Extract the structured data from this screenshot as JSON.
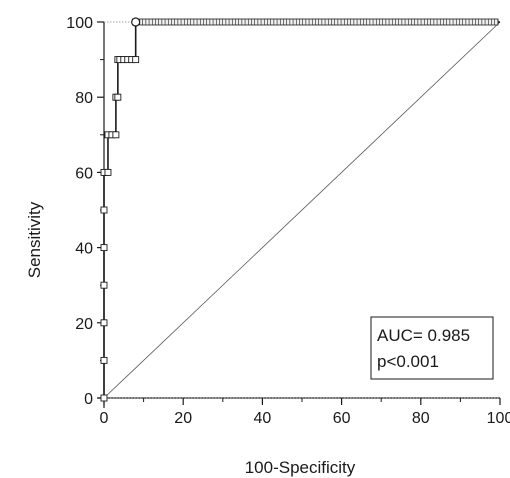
{
  "chart_data": {
    "type": "line",
    "title": "",
    "xlabel": "100-Specificity",
    "ylabel": "Sensitivity",
    "xlim": [
      0,
      100
    ],
    "ylim": [
      0,
      100
    ],
    "xticks": [
      0,
      20,
      40,
      60,
      80,
      100
    ],
    "yticks": [
      0,
      20,
      40,
      60,
      80,
      100
    ],
    "grid": false,
    "series": [
      {
        "points": [
          [
            0,
            0
          ],
          [
            0,
            10
          ],
          [
            0,
            20
          ],
          [
            0,
            30
          ],
          [
            0,
            40
          ],
          [
            0,
            50
          ],
          [
            0,
            60
          ],
          [
            1,
            60
          ],
          [
            1,
            70
          ],
          [
            2,
            70
          ],
          [
            3,
            70
          ],
          [
            3,
            80
          ],
          [
            3.5,
            80
          ],
          [
            3.5,
            90
          ],
          [
            4,
            90
          ],
          [
            5,
            90
          ],
          [
            6,
            90
          ],
          [
            7,
            90
          ],
          [
            8,
            90
          ],
          [
            8,
            100
          ],
          [
            100,
            100
          ]
        ],
        "color": "#1a1a1a"
      },
      {
        "points": [
          [
            0,
            0
          ],
          [
            100,
            100
          ]
        ],
        "color": "#555555",
        "style": "reference-diagonal"
      }
    ],
    "annotations": {
      "auc_text": "AUC= 0.985",
      "p_text": "p<0.001"
    }
  }
}
